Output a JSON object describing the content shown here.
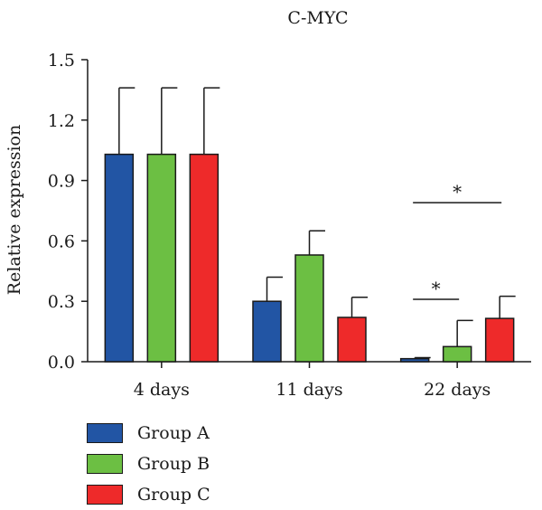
{
  "chart_data": {
    "type": "bar",
    "title": "C-MYC",
    "ylabel": "Relative expression",
    "xlabel": "",
    "ylim": [
      0,
      1.5
    ],
    "yticks": [
      "0.0",
      "0.3",
      "0.6",
      "0.9",
      "1.2",
      "1.5"
    ],
    "categories": [
      "4 days",
      "11 days",
      "22 days"
    ],
    "series": [
      {
        "name": "Group A",
        "color": "#2255a4",
        "values": [
          1.03,
          0.3,
          0.015
        ],
        "errors": [
          0.33,
          0.12,
          0.005
        ]
      },
      {
        "name": "Group B",
        "color": "#6cbf43",
        "values": [
          1.03,
          0.53,
          0.075
        ],
        "errors": [
          0.33,
          0.12,
          0.13
        ]
      },
      {
        "name": "Group C",
        "color": "#ee2a2a",
        "values": [
          1.03,
          0.22,
          0.215
        ],
        "errors": [
          0.33,
          0.1,
          0.11
        ]
      }
    ],
    "annotations": [
      {
        "label": "*",
        "category": "22 days",
        "from_series": "Group A",
        "to_series": "Group B",
        "y": 0.31
      },
      {
        "label": "*",
        "category": "22 days",
        "from_series": "Group A",
        "to_series": "Group C",
        "y": 0.79
      }
    ]
  },
  "legend": {
    "items": [
      {
        "label": "Group A",
        "color": "#2255a4"
      },
      {
        "label": "Group B",
        "color": "#6cbf43"
      },
      {
        "label": "Group C",
        "color": "#ee2a2a"
      }
    ]
  }
}
